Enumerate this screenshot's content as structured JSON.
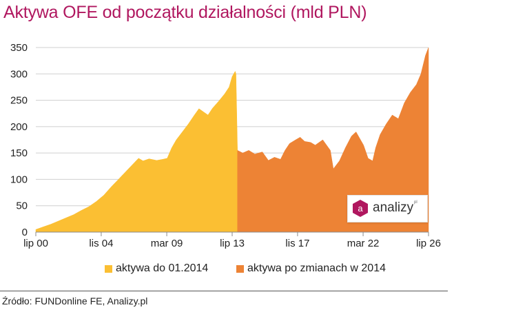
{
  "header": {
    "title": "Aktywa OFE od początku działalności (mld PLN)"
  },
  "chart_data": {
    "type": "area",
    "title": "Aktywa OFE od początku działalności (mld PLN)",
    "ylim": [
      0,
      350
    ],
    "yticks": [
      0,
      50,
      100,
      150,
      200,
      250,
      300,
      350
    ],
    "xlim": [
      2000.5,
      2026.5
    ],
    "xtick_labels": [
      "lip 00",
      "lis 04",
      "mar 09",
      "lip 13",
      "lis 17",
      "mar 22",
      "lip 26"
    ],
    "xtick_positions": [
      2000.5,
      2004.83,
      2009.17,
      2013.5,
      2017.83,
      2022.17,
      2026.5
    ],
    "grid": true,
    "legend_position": "bottom",
    "series": [
      {
        "name": "aktywa do 01.2014",
        "color": "#fbbf33",
        "x": [
          2000.5,
          2001.0,
          2001.5,
          2002.0,
          2002.5,
          2003.0,
          2003.5,
          2004.0,
          2004.5,
          2005.0,
          2005.5,
          2006.0,
          2006.5,
          2007.0,
          2007.3,
          2007.6,
          2008.0,
          2008.5,
          2008.9,
          2009.2,
          2009.5,
          2009.8,
          2010.2,
          2010.6,
          2011.0,
          2011.3,
          2011.6,
          2011.9,
          2012.2,
          2012.6,
          2013.0,
          2013.3,
          2013.5,
          2013.7,
          2013.75,
          2013.85
        ],
        "values": [
          5,
          10,
          15,
          21,
          27,
          33,
          41,
          48,
          58,
          70,
          86,
          101,
          116,
          131,
          140,
          135,
          139,
          136,
          138,
          140,
          160,
          175,
          190,
          205,
          222,
          234,
          228,
          222,
          235,
          248,
          262,
          275,
          295,
          305,
          300,
          155
        ]
      },
      {
        "name": "aktywa po zmianach w 2014",
        "color": "#ed8335",
        "x": [
          2013.85,
          2014.2,
          2014.6,
          2015.0,
          2015.5,
          2015.9,
          2016.3,
          2016.7,
          2017.0,
          2017.3,
          2017.7,
          2018.0,
          2018.3,
          2018.7,
          2019.0,
          2019.5,
          2020.0,
          2020.2,
          2020.6,
          2021.0,
          2021.4,
          2021.7,
          2022.2,
          2022.5,
          2022.8,
          2023.0,
          2023.3,
          2023.7,
          2024.1,
          2024.5,
          2024.9,
          2025.3,
          2025.7,
          2026.0,
          2026.3,
          2026.5
        ],
        "values": [
          155,
          150,
          155,
          148,
          152,
          136,
          142,
          138,
          155,
          168,
          175,
          180,
          172,
          170,
          165,
          175,
          155,
          120,
          135,
          160,
          182,
          190,
          165,
          140,
          135,
          160,
          185,
          205,
          222,
          215,
          245,
          265,
          280,
          300,
          335,
          350
        ]
      }
    ]
  },
  "legend": {
    "items": [
      {
        "label": "aktywa do 01.2014",
        "color": "#fbbf33"
      },
      {
        "label": "aktywa po zmianach w 2014",
        "color": "#ed8335"
      }
    ]
  },
  "watermark": {
    "brand": "analizy",
    "suffix": "pl",
    "mark": "a"
  },
  "footer": {
    "source": "Źródło: FUNDonline FE, Analizy.pl"
  }
}
